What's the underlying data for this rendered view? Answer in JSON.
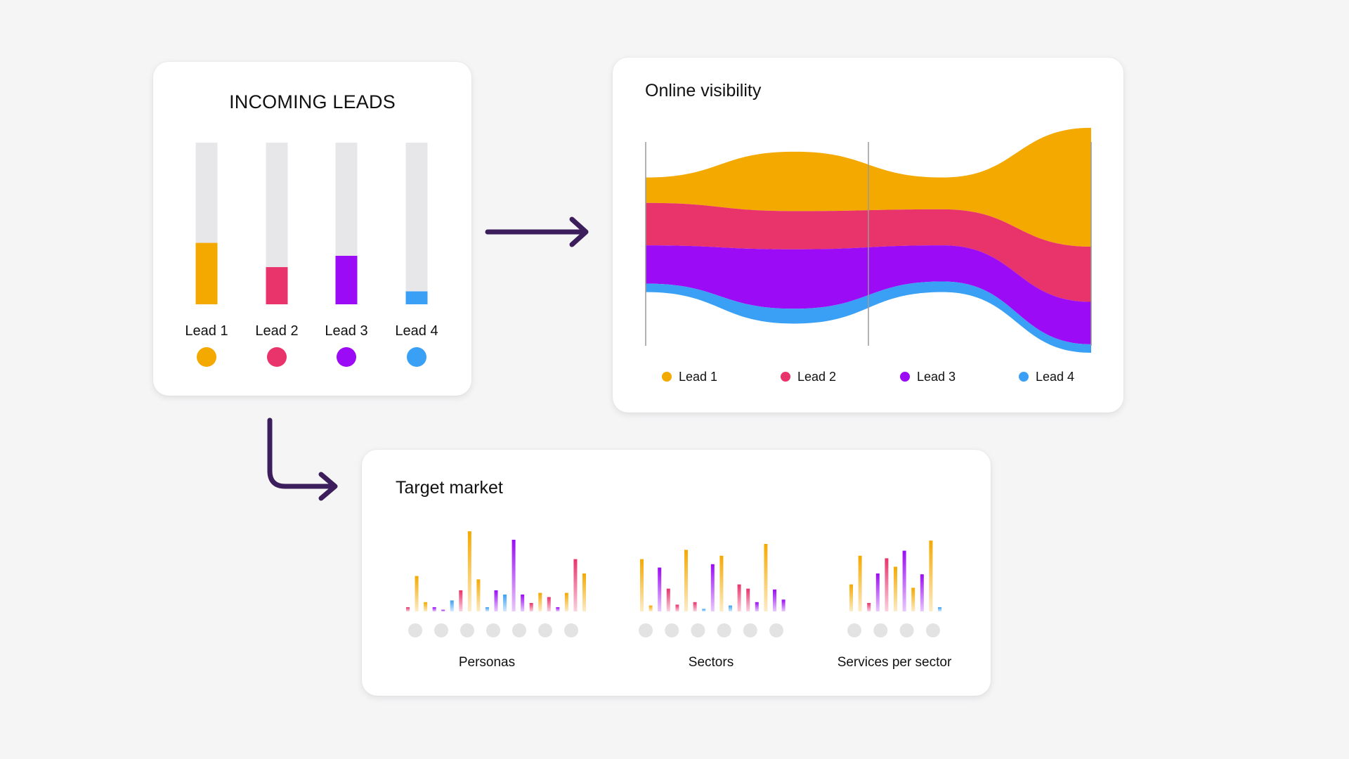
{
  "colors": {
    "lead1": "#f4a900",
    "lead2": "#e8336b",
    "lead3": "#9b0bf5",
    "lead4": "#3aa0f5",
    "track": "#e7e6e8",
    "dot": "#e3e3e3",
    "arrow": "#3d1e5c",
    "axis": "#9a9a9a"
  },
  "incoming": {
    "title": "INCOMING LEADS"
  },
  "visibility": {
    "title": "Online visibility"
  },
  "target": {
    "title": "Target market"
  },
  "chart_data": [
    {
      "type": "bar",
      "title": "INCOMING LEADS",
      "categories": [
        "Lead 1",
        "Lead 2",
        "Lead 3",
        "Lead 4"
      ],
      "values": [
        0.38,
        0.23,
        0.3,
        0.08
      ],
      "ylim": [
        0,
        1
      ],
      "legend": "markers below bars"
    },
    {
      "type": "area",
      "title": "Online visibility",
      "stacked": true,
      "x": [
        0,
        1,
        2,
        3
      ],
      "series": [
        {
          "name": "Lead 1",
          "values": [
            0.12,
            0.28,
            0.15,
            0.56
          ]
        },
        {
          "name": "Lead 2",
          "values": [
            0.2,
            0.18,
            0.17,
            0.26
          ]
        },
        {
          "name": "Lead 3",
          "values": [
            0.18,
            0.28,
            0.17,
            0.2
          ]
        },
        {
          "name": "Lead 4",
          "values": [
            0.04,
            0.07,
            0.05,
            0.04
          ]
        }
      ],
      "legend": "bottom",
      "axes": "none"
    },
    {
      "type": "bar",
      "title": "Personas",
      "values": [
        0.05,
        0.42,
        0.11,
        0.05,
        0.02,
        0.13,
        0.25,
        0.95,
        0.38,
        0.05,
        0.25,
        0.2,
        0.85,
        0.2,
        0.1,
        0.22,
        0.17,
        0.05,
        0.22,
        0.62,
        0.45
      ],
      "series_colors": [
        "lead2",
        "lead1",
        "lead1",
        "lead3",
        "lead3",
        "lead4",
        "lead2",
        "lead1",
        "lead1",
        "lead4",
        "lead3",
        "lead4",
        "lead3",
        "lead3",
        "lead2",
        "lead1",
        "lead2",
        "lead3",
        "lead1",
        "lead2",
        "lead1"
      ],
      "markers": 7
    },
    {
      "type": "bar",
      "title": "Sectors",
      "values": [
        0.62,
        0.07,
        0.52,
        0.27,
        0.08,
        0.73,
        0.11,
        0.03,
        0.56,
        0.66,
        0.07,
        0.32,
        0.27,
        0.11,
        0.8,
        0.26,
        0.14
      ],
      "series_colors": [
        "lead1",
        "lead1",
        "lead3",
        "lead2",
        "lead2",
        "lead1",
        "lead2",
        "lead4",
        "lead3",
        "lead1",
        "lead4",
        "lead2",
        "lead2",
        "lead3",
        "lead1",
        "lead3",
        "lead3"
      ],
      "markers": 6
    },
    {
      "type": "bar",
      "title": "Services per sector",
      "values": [
        0.32,
        0.66,
        0.1,
        0.45,
        0.63,
        0.53,
        0.72,
        0.28,
        0.44,
        0.84,
        0.05
      ],
      "series_colors": [
        "lead1",
        "lead1",
        "lead2",
        "lead3",
        "lead2",
        "lead1",
        "lead3",
        "lead1",
        "lead3",
        "lead1",
        "lead4"
      ],
      "markers": 4
    }
  ]
}
